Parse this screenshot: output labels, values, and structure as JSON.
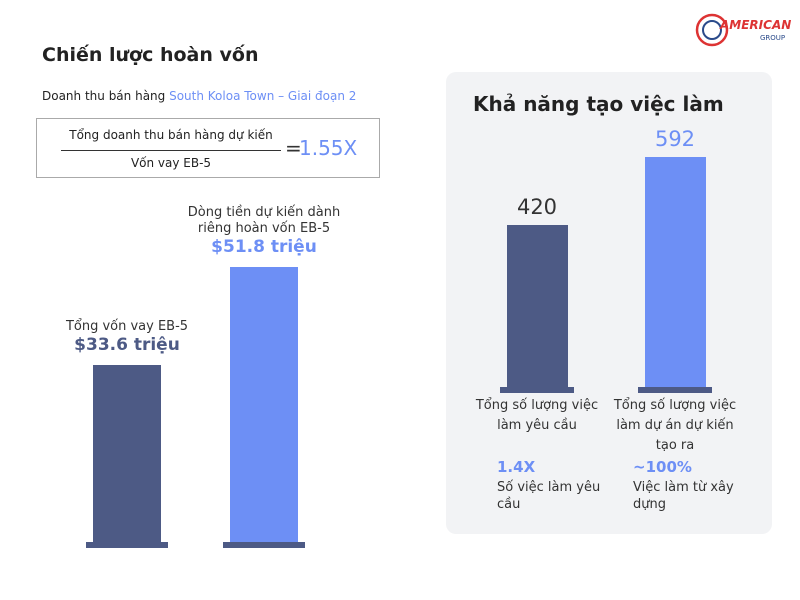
{
  "logo": {
    "text": "AMERICAN",
    "sub": "GROUP"
  },
  "chart_data": [
    {
      "type": "bar",
      "title": "Chiến lược hoàn vốn",
      "subtitle": "Doanh thu bán hàng",
      "subtitle_highlight": "South Koloa Town – Giai đoạn 2",
      "formula": {
        "numerator": "Tổng doanh thu bán hàng dự kiến",
        "denominator": "Vốn vay EB-5",
        "operator": "=",
        "result": "1.55X"
      },
      "categories": [
        "Tổng vốn vay EB-5",
        "Dòng tiền dự kiến dành riêng hoàn vốn EB-5"
      ],
      "values": [
        33.6,
        51.8
      ],
      "value_labels": [
        "$33.6 triệu",
        "$51.8 triệu"
      ],
      "colors": [
        "#4d5a85",
        "#6d8ff5"
      ]
    },
    {
      "type": "bar",
      "title": "Khả năng tạo việc làm",
      "categories": [
        "Tổng số lượng việc làm yêu cầu",
        "Tổng số lượng việc làm dự án dự kiến tạo ra"
      ],
      "values": [
        420,
        592
      ],
      "colors": [
        "#4d5a85",
        "#6d8ff5"
      ],
      "annotations": [
        {
          "value": "1.4X",
          "text": "Số việc làm yêu cầu"
        },
        {
          "value": "~100%",
          "text": "Việc làm từ xây dựng"
        }
      ]
    }
  ]
}
